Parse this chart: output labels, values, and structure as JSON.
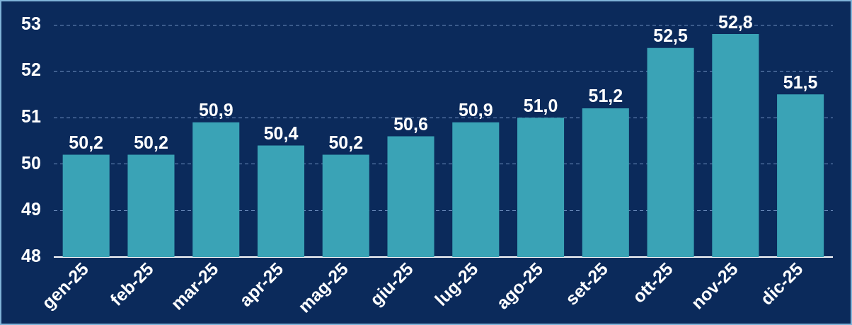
{
  "chart_data": {
    "type": "bar",
    "categories": [
      "gen-25",
      "feb-25",
      "mar-25",
      "apr-25",
      "mag-25",
      "giu-25",
      "lug-25",
      "ago-25",
      "set-25",
      "ott-25",
      "nov-25",
      "dic-25"
    ],
    "values": [
      50.2,
      50.2,
      50.9,
      50.4,
      50.2,
      50.6,
      50.9,
      51.0,
      51.2,
      52.5,
      52.8,
      51.5
    ],
    "value_labels": [
      "50,2",
      "50,2",
      "50,9",
      "50,4",
      "50,2",
      "50,6",
      "50,9",
      "51,0",
      "51,2",
      "52,5",
      "52,8",
      "51,5"
    ],
    "color": "#3aa3b6",
    "ylim": [
      48,
      53
    ],
    "yticks": [
      48,
      49,
      50,
      51,
      52,
      53
    ],
    "grid": "y",
    "legend": false
  }
}
